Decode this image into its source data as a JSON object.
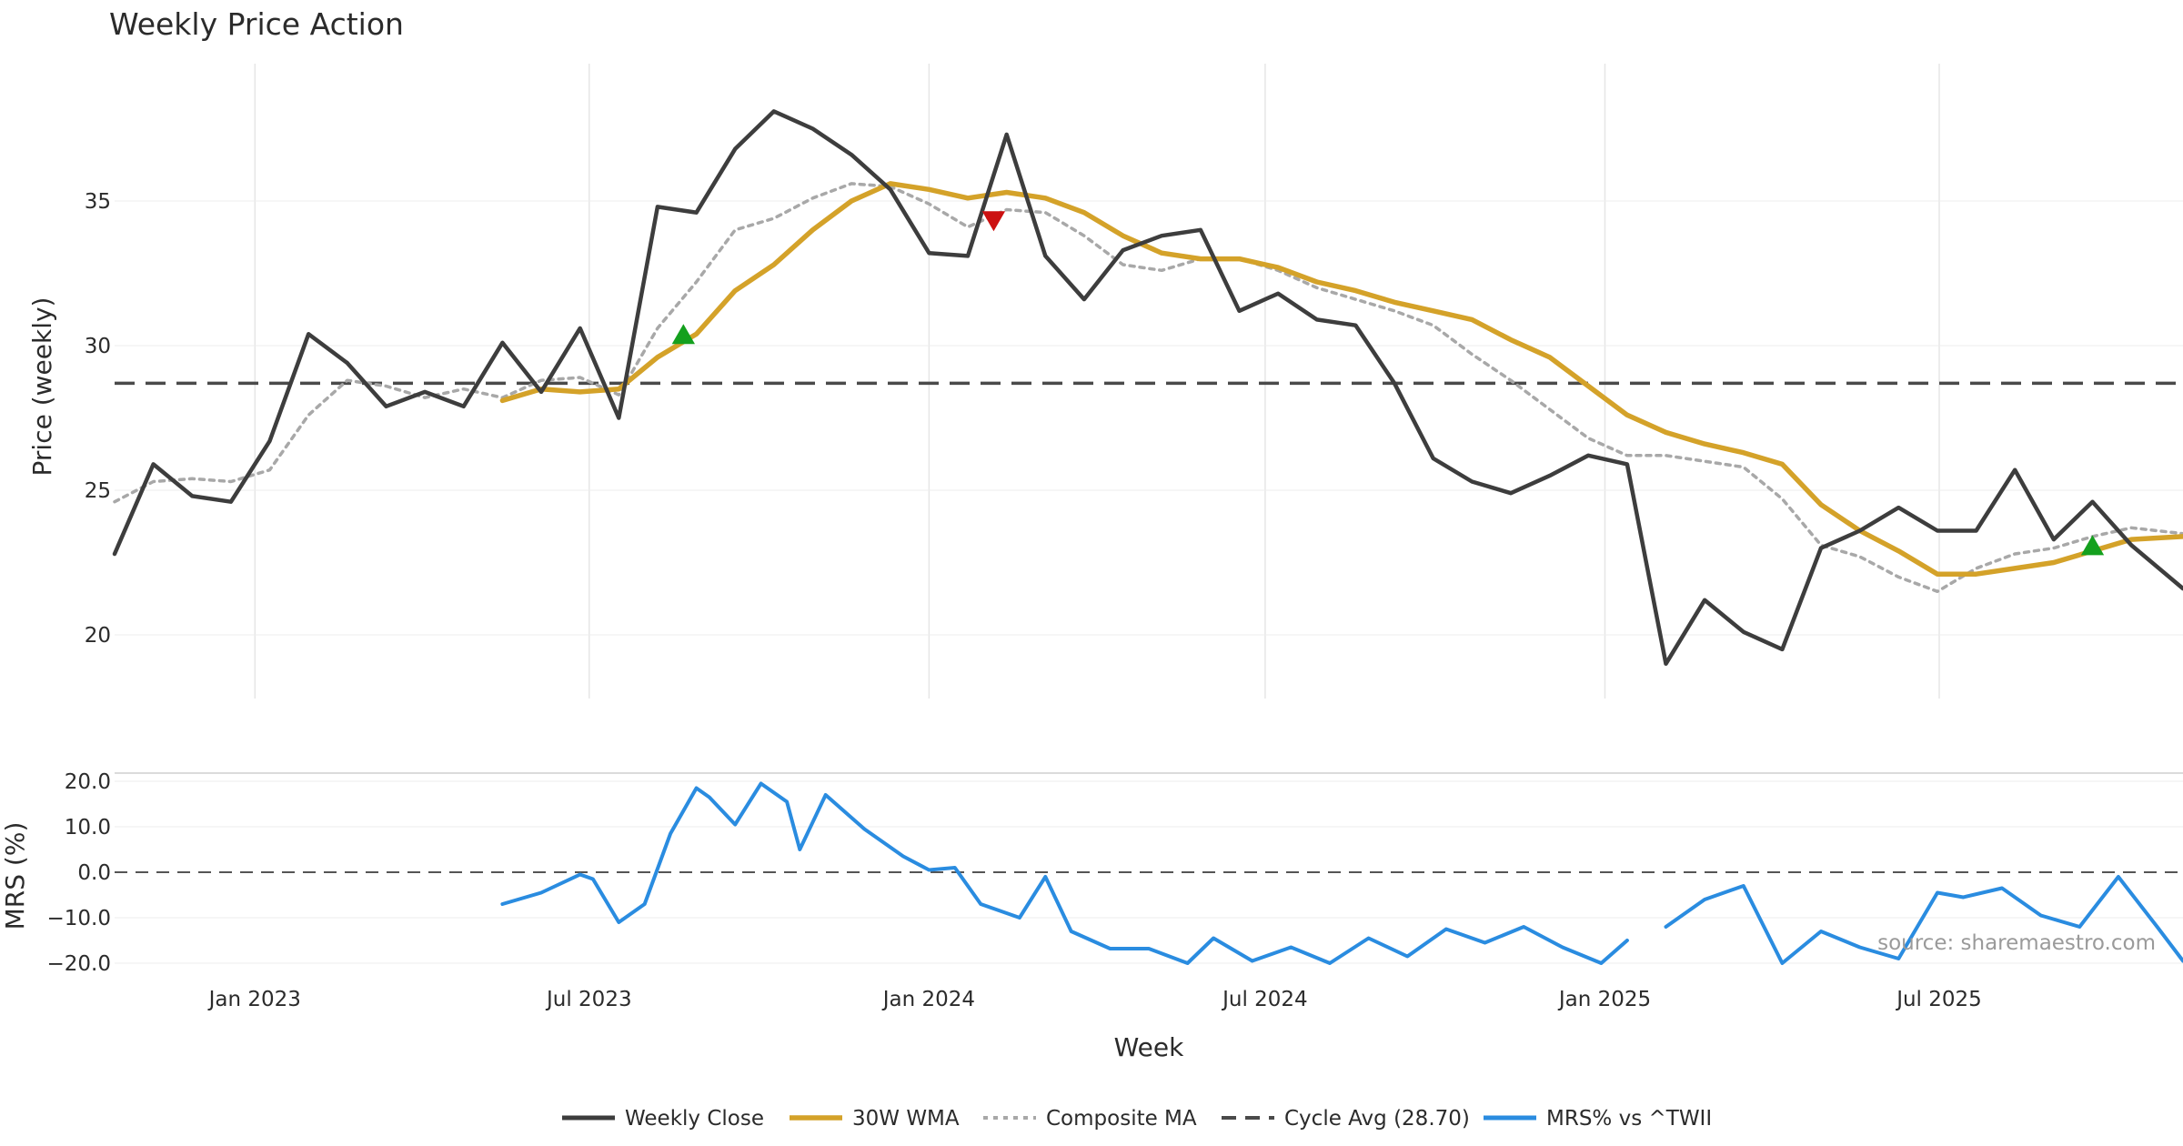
{
  "chart_data": {
    "type": "line",
    "title": "Weekly Price Action",
    "xlabel": "Week",
    "ylabel": "Price (weekly)",
    "ylabel2": "MRS (%)",
    "source": "source: sharemaestro.com",
    "x_ticks": [
      "Jan 2023",
      "Jul 2023",
      "Jan 2024",
      "Jul 2024",
      "Jan 2025",
      "Jul 2025"
    ],
    "x_range": [
      "2022-10-17",
      "2025-11-10"
    ],
    "ylim": [
      18,
      40
    ],
    "yticks": [
      20,
      25,
      30,
      35
    ],
    "ylim2": [
      -23,
      22
    ],
    "yticks2": [
      20.0,
      10.0,
      0.0,
      -10.0,
      -20.0
    ],
    "ytick_labels2": [
      "20.0",
      "10.0",
      "0.0",
      "−10.0",
      "−20.0"
    ],
    "cycle_avg": 28.7,
    "grid": true,
    "legend_position": "bottom-center",
    "legend": [
      "Weekly Close",
      "30W WMA",
      "Composite MA",
      "Cycle Avg (28.70)",
      "MRS% vs ^TWII"
    ],
    "colors": {
      "close": "#3d3d3d",
      "wma": "#d4a229",
      "composite": "#a8a8a8",
      "cycle": "#4a4a4a",
      "mrs": "#2a8ce0",
      "buy": "#14a01e",
      "sell": "#cc1111"
    },
    "series": [
      {
        "name": "Weekly Close",
        "x": [
          "2022-10-17",
          "2022-11-07",
          "2022-11-28",
          "2022-12-19",
          "2023-01-09",
          "2023-01-30",
          "2023-02-20",
          "2023-03-13",
          "2023-04-03",
          "2023-04-24",
          "2023-05-15",
          "2023-06-05",
          "2023-06-26",
          "2023-07-17",
          "2023-08-07",
          "2023-08-28",
          "2023-09-18",
          "2023-10-09",
          "2023-10-30",
          "2023-11-20",
          "2023-12-11",
          "2024-01-01",
          "2024-01-22",
          "2024-02-12",
          "2024-03-04",
          "2024-03-25",
          "2024-04-15",
          "2024-05-06",
          "2024-05-27",
          "2024-06-17",
          "2024-07-08",
          "2024-07-29",
          "2024-08-19",
          "2024-09-09",
          "2024-09-30",
          "2024-10-21",
          "2024-11-11",
          "2024-12-02",
          "2024-12-23",
          "2025-01-13",
          "2025-02-03",
          "2025-02-24",
          "2025-03-17",
          "2025-04-07",
          "2025-04-28",
          "2025-05-19",
          "2025-06-09",
          "2025-06-30",
          "2025-07-21",
          "2025-08-11",
          "2025-09-01",
          "2025-09-22",
          "2025-10-13",
          "2025-11-10"
        ],
        "values": [
          22.8,
          25.9,
          24.8,
          24.6,
          26.7,
          30.4,
          29.4,
          27.9,
          28.4,
          27.9,
          30.1,
          28.4,
          30.6,
          27.5,
          34.8,
          34.6,
          36.8,
          38.1,
          37.5,
          36.6,
          35.4,
          33.2,
          33.1,
          37.3,
          33.1,
          31.6,
          33.3,
          33.8,
          34.0,
          31.2,
          31.8,
          30.9,
          30.7,
          28.7,
          26.1,
          25.3,
          24.9,
          25.5,
          26.2,
          25.9,
          19.0,
          21.2,
          20.1,
          19.5,
          23.0,
          23.6,
          24.4,
          23.6,
          23.6,
          25.7,
          23.3,
          24.6,
          23.1,
          21.6
        ]
      },
      {
        "name": "30W WMA",
        "x": [
          "2023-05-15",
          "2023-06-05",
          "2023-06-26",
          "2023-07-17",
          "2023-08-07",
          "2023-08-28",
          "2023-09-18",
          "2023-10-09",
          "2023-10-30",
          "2023-11-20",
          "2023-12-11",
          "2024-01-01",
          "2024-01-22",
          "2024-02-12",
          "2024-03-04",
          "2024-03-25",
          "2024-04-15",
          "2024-05-06",
          "2024-05-27",
          "2024-06-17",
          "2024-07-08",
          "2024-07-29",
          "2024-08-19",
          "2024-09-09",
          "2024-09-30",
          "2024-10-21",
          "2024-11-11",
          "2024-12-02",
          "2024-12-23",
          "2025-01-13",
          "2025-02-03",
          "2025-02-24",
          "2025-03-17",
          "2025-04-07",
          "2025-04-28",
          "2025-05-19",
          "2025-06-09",
          "2025-06-30",
          "2025-07-21",
          "2025-08-11",
          "2025-09-01",
          "2025-09-22",
          "2025-10-13",
          "2025-11-10"
        ],
        "values": [
          28.1,
          28.5,
          28.4,
          28.5,
          29.6,
          30.4,
          31.9,
          32.8,
          34.0,
          35.0,
          35.6,
          35.4,
          35.1,
          35.3,
          35.1,
          34.6,
          33.8,
          33.2,
          33.0,
          33.0,
          32.7,
          32.2,
          31.9,
          31.5,
          31.2,
          30.9,
          30.2,
          29.6,
          28.6,
          27.6,
          27.0,
          26.6,
          26.3,
          25.9,
          24.5,
          23.6,
          22.9,
          22.1,
          22.1,
          22.3,
          22.5,
          22.9,
          23.3,
          23.4
        ]
      },
      {
        "name": "Composite MA",
        "x": [
          "2022-10-17",
          "2022-11-07",
          "2022-11-28",
          "2022-12-19",
          "2023-01-09",
          "2023-01-30",
          "2023-02-20",
          "2023-03-13",
          "2023-04-03",
          "2023-04-24",
          "2023-05-15",
          "2023-06-05",
          "2023-06-26",
          "2023-07-17",
          "2023-08-07",
          "2023-08-28",
          "2023-09-18",
          "2023-10-09",
          "2023-10-30",
          "2023-11-20",
          "2023-12-11",
          "2024-01-01",
          "2024-01-22",
          "2024-02-12",
          "2024-03-04",
          "2024-03-25",
          "2024-04-15",
          "2024-05-06",
          "2024-05-27",
          "2024-06-17",
          "2024-07-08",
          "2024-07-29",
          "2024-08-19",
          "2024-09-09",
          "2024-09-30",
          "2024-10-21",
          "2024-11-11",
          "2024-12-02",
          "2024-12-23",
          "2025-01-13",
          "2025-02-03",
          "2025-02-24",
          "2025-03-17",
          "2025-04-07",
          "2025-04-28",
          "2025-05-19",
          "2025-06-09",
          "2025-06-30",
          "2025-07-21",
          "2025-08-11",
          "2025-09-01",
          "2025-09-22",
          "2025-10-13",
          "2025-11-10"
        ],
        "values": [
          24.6,
          25.3,
          25.4,
          25.3,
          25.7,
          27.6,
          28.8,
          28.6,
          28.2,
          28.5,
          28.2,
          28.8,
          28.9,
          28.3,
          30.6,
          32.2,
          34.0,
          34.4,
          35.1,
          35.6,
          35.5,
          34.9,
          34.1,
          34.7,
          34.6,
          33.8,
          32.8,
          32.6,
          33.0,
          33.0,
          32.6,
          32.0,
          31.6,
          31.2,
          30.7,
          29.7,
          28.8,
          27.8,
          26.8,
          26.2,
          26.2,
          26.0,
          25.8,
          24.7,
          23.1,
          22.7,
          22.0,
          21.5,
          22.3,
          22.8,
          23.0,
          23.4,
          23.7,
          23.5
        ]
      },
      {
        "name": "MRS% vs ^TWII",
        "x": [
          "2023-05-15",
          "2023-06-05",
          "2023-06-26",
          "2023-07-03",
          "2023-07-17",
          "2023-07-31",
          "2023-08-14",
          "2023-08-28",
          "2023-09-04",
          "2023-09-18",
          "2023-10-02",
          "2023-10-16",
          "2023-10-23",
          "2023-11-06",
          "2023-11-27",
          "2023-12-18",
          "2024-01-01",
          "2024-01-15",
          "2024-01-29",
          "2024-02-19",
          "2024-03-04",
          "2024-03-18",
          "2024-04-08",
          "2024-04-29",
          "2024-05-20",
          "2024-06-03",
          "2024-06-24",
          "2024-07-15",
          "2024-08-05",
          "2024-08-26",
          "2024-09-16",
          "2024-10-07",
          "2024-10-28",
          "2024-11-18",
          "2024-12-09",
          "2024-12-30",
          "2025-01-13",
          "2025-02-03",
          "2025-02-24",
          "2025-03-17",
          "2025-04-07",
          "2025-04-28",
          "2025-05-19",
          "2025-06-09",
          "2025-06-30",
          "2025-07-14",
          "2025-08-04",
          "2025-08-25",
          "2025-09-15",
          "2025-10-06",
          "2025-10-27",
          "2025-11-10"
        ],
        "values": [
          -7.0,
          -4.5,
          -0.5,
          -1.5,
          -11.0,
          -7.0,
          8.5,
          18.5,
          16.5,
          10.5,
          19.5,
          15.5,
          5.0,
          17.0,
          9.5,
          3.5,
          0.5,
          1.0,
          -7.0,
          -10.0,
          -1.0,
          -13.0,
          -16.8,
          -16.8,
          -20.0,
          -14.5,
          -19.5,
          -16.5,
          -20.0,
          -14.5,
          -18.5,
          -12.5,
          -15.5,
          -12.0,
          -16.5,
          -20.0,
          -15.0,
          -12.0,
          -6.0,
          -3.0,
          -20.0,
          -13.0,
          -16.5,
          -19.0,
          -4.5,
          -5.5,
          -3.5,
          -9.5,
          -12.0,
          -1.0,
          -12.0,
          -19.5
        ]
      }
    ],
    "signals": [
      {
        "type": "buy",
        "x": "2023-08-21",
        "y": 30.4
      },
      {
        "type": "sell",
        "x": "2024-02-05",
        "y": 34.3
      },
      {
        "type": "buy",
        "x": "2025-09-22",
        "y": 23.1
      }
    ]
  }
}
